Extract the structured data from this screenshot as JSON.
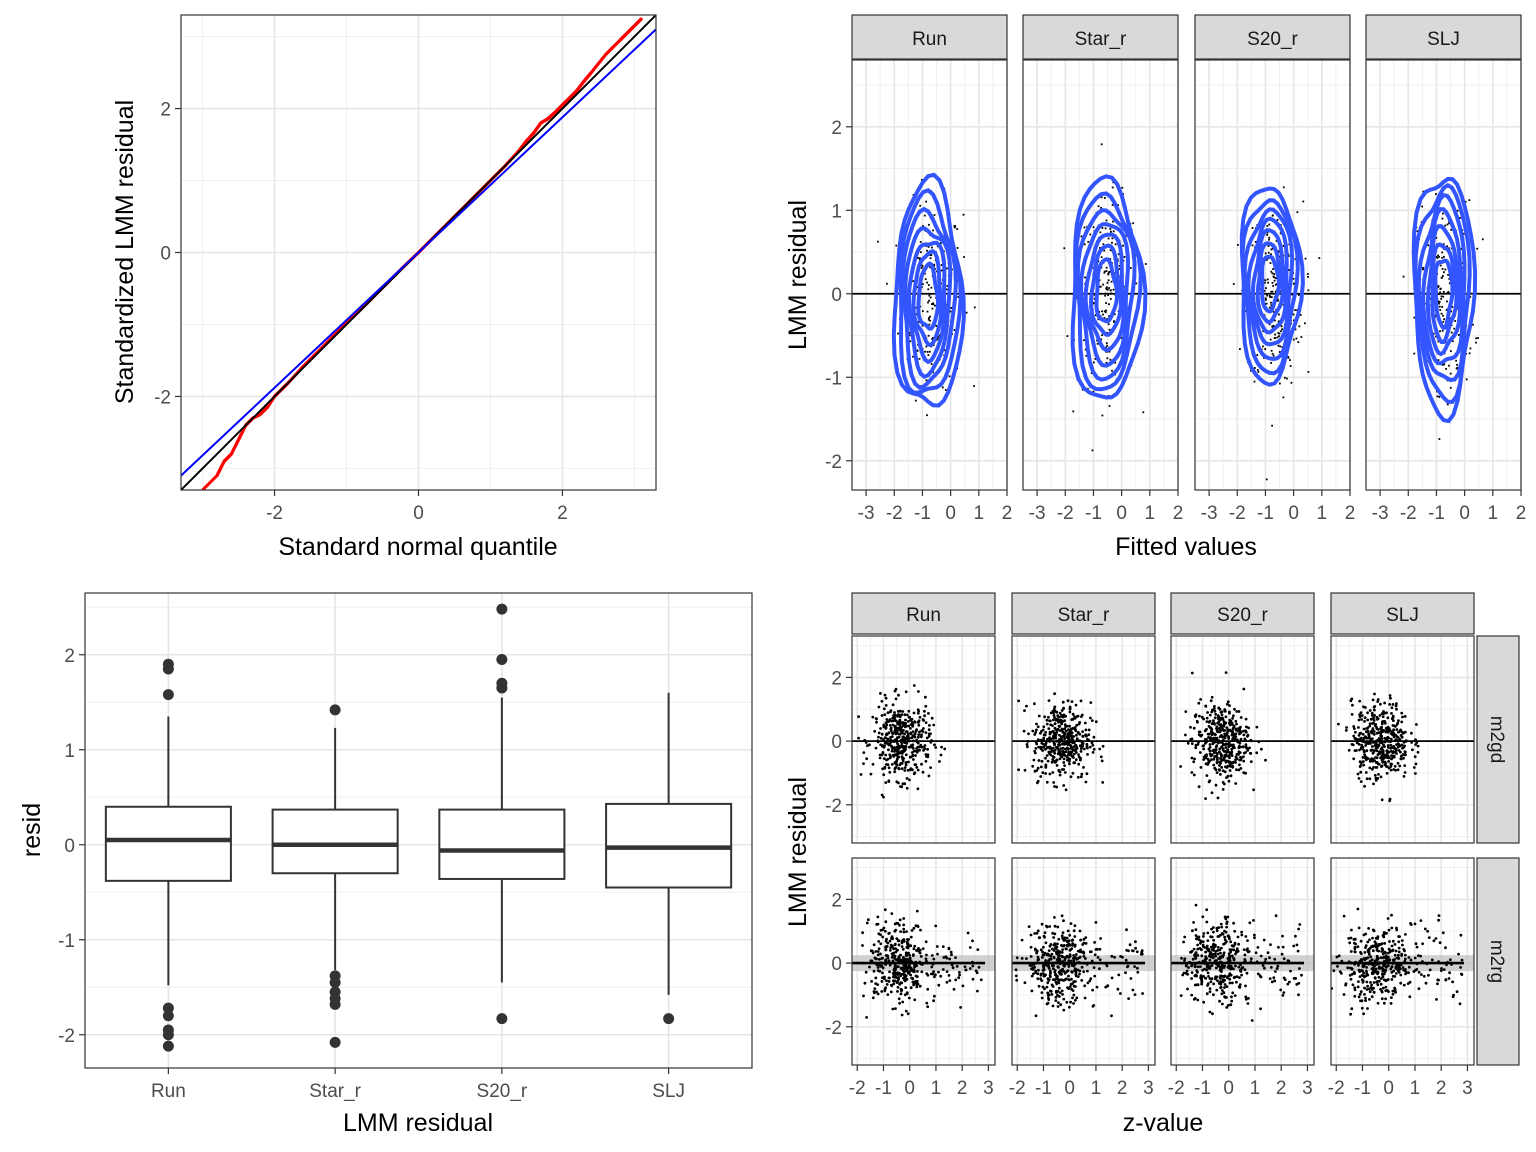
{
  "chart_data": [
    {
      "type": "scatter",
      "title": "",
      "xlabel": "Standard normal quantile",
      "ylabel": "Standardized LMM residual",
      "xlim": [
        -3.3,
        3.3
      ],
      "ylim": [
        -3.3,
        3.3
      ],
      "xticks": [
        -2,
        0,
        2
      ],
      "yticks": [
        -2,
        0,
        2
      ],
      "xtick_labels": [
        "-2",
        "0",
        "2"
      ],
      "ytick_labels": [
        "-2",
        "0",
        "2"
      ],
      "grid": true,
      "colors": {
        "points": "#ff0000",
        "identity_line": "#000000",
        "qq_line": "#0000ff"
      },
      "series": [
        {
          "kind": "points",
          "x": [
            -3.1,
            -2.8,
            -2.7,
            -2.6,
            -2.5,
            -2.4,
            -2.3,
            -2.2,
            -2.1,
            -2.0,
            -1.9,
            -1.8,
            -1.6,
            -1.4,
            -1.2,
            -1.0,
            -0.8,
            -0.6,
            -0.4,
            -0.2,
            0.0,
            0.2,
            0.4,
            0.6,
            0.8,
            1.0,
            1.2,
            1.4,
            1.5,
            1.6,
            1.7,
            1.8,
            1.9,
            2.0,
            2.1,
            2.2,
            2.3,
            2.4,
            2.6,
            2.8,
            2.9,
            3.0,
            3.1
          ],
          "y": [
            -3.4,
            -3.1,
            -2.9,
            -2.8,
            -2.6,
            -2.4,
            -2.3,
            -2.25,
            -2.15,
            -2.0,
            -1.9,
            -1.8,
            -1.58,
            -1.38,
            -1.18,
            -0.98,
            -0.79,
            -0.59,
            -0.39,
            -0.19,
            0.0,
            0.2,
            0.4,
            0.6,
            0.8,
            1.0,
            1.2,
            1.42,
            1.55,
            1.66,
            1.8,
            1.86,
            1.95,
            2.05,
            2.15,
            2.25,
            2.38,
            2.5,
            2.75,
            2.95,
            3.05,
            3.15,
            3.25
          ]
        },
        {
          "kind": "line",
          "name": "",
          "x": [
            -3.3,
            3.3
          ],
          "y": [
            -3.3,
            3.3
          ]
        },
        {
          "kind": "line",
          "name": "",
          "x": [
            -3.3,
            3.3
          ],
          "y": [
            -3.1,
            3.1
          ]
        }
      ]
    },
    {
      "type": "scatter",
      "title": "",
      "xlabel": "Fitted values",
      "ylabel": "LMM residual",
      "xlim": [
        -3.5,
        2.0
      ],
      "ylim": [
        -2.35,
        2.8
      ],
      "xticks": [
        -3,
        -2,
        -1,
        0,
        1,
        2
      ],
      "yticks": [
        -2,
        -1,
        0,
        1,
        2
      ],
      "xtick_labels": [
        "-3",
        "-2",
        "-1",
        "0",
        "1",
        "2"
      ],
      "ytick_labels": [
        "-2",
        "-1",
        "0",
        "1",
        "2"
      ],
      "grid": true,
      "colors": {
        "contour": "#3355ff",
        "points": "#000000",
        "hline": "#000000"
      },
      "facets": [
        {
          "label": "Run",
          "center_x": -0.7,
          "spread_x": 0.55,
          "contour_x": [
            -2.0,
            0.4
          ],
          "contour_y": [
            -1.4,
            1.3
          ]
        },
        {
          "label": "Star_r",
          "center_x": -0.5,
          "spread_x": 0.55,
          "contour_x": [
            -1.8,
            0.7
          ],
          "contour_y": [
            -1.3,
            1.35
          ]
        },
        {
          "label": "S20_r",
          "center_x": -0.7,
          "spread_x": 0.5,
          "contour_x": [
            -1.9,
            0.2
          ],
          "contour_y": [
            -1.05,
            1.3
          ]
        },
        {
          "label": "SLJ",
          "center_x": -0.7,
          "spread_x": 0.5,
          "contour_x": [
            -1.8,
            0.3
          ],
          "contour_y": [
            -1.4,
            1.45
          ]
        }
      ]
    },
    {
      "type": "box",
      "title": "",
      "xlabel": "LMM residual",
      "ylabel": "resid",
      "ylim": [
        -2.35,
        2.65
      ],
      "yticks": [
        -2,
        -1,
        0,
        1,
        2
      ],
      "ytick_labels": [
        "-2",
        "-1",
        "0",
        "1",
        "2"
      ],
      "categories": [
        "Run",
        "Star_r",
        "S20_r",
        "SLJ"
      ],
      "grid": true,
      "boxes": [
        {
          "category": "Run",
          "q1": -0.38,
          "median": 0.05,
          "q3": 0.4,
          "whisker_low": -1.48,
          "whisker_high": 1.35,
          "outliers": [
            1.9,
            1.85,
            1.58,
            -1.72,
            -1.8,
            -1.95,
            -2.0,
            -2.12
          ]
        },
        {
          "category": "Star_r",
          "q1": -0.3,
          "median": 0.0,
          "q3": 0.37,
          "whisker_low": -1.32,
          "whisker_high": 1.23,
          "outliers": [
            1.42,
            -1.38,
            -1.45,
            -1.55,
            -1.62,
            -1.68,
            -2.08
          ]
        },
        {
          "category": "S20_r",
          "q1": -0.36,
          "median": -0.06,
          "q3": 0.37,
          "whisker_low": -1.45,
          "whisker_high": 1.55,
          "outliers": [
            2.48,
            1.95,
            1.7,
            1.65,
            -1.83
          ]
        },
        {
          "category": "SLJ",
          "q1": -0.45,
          "median": -0.03,
          "q3": 0.43,
          "whisker_low": -1.58,
          "whisker_high": 1.6,
          "outliers": [
            -1.83
          ]
        }
      ]
    },
    {
      "type": "scatter",
      "title": "",
      "xlabel": "z-value",
      "ylabel": "LMM residual",
      "xlim": [
        -2.2,
        3.25
      ],
      "ylim": [
        -3.2,
        3.3
      ],
      "xticks": [
        -2,
        -1,
        0,
        1,
        2,
        3
      ],
      "yticks": [
        -2,
        0,
        2
      ],
      "xtick_labels": [
        "-2",
        "-1",
        "0",
        "1",
        "2",
        "3"
      ],
      "ytick_labels": [
        "-2",
        "0",
        "2"
      ],
      "grid": true,
      "col_facets": [
        "Run",
        "Star_r",
        "S20_r",
        "SLJ"
      ],
      "row_facets": [
        "m2gd",
        "m2rg"
      ],
      "rows": [
        {
          "label": "m2gd",
          "points_x_range": [
            -2.0,
            1.4
          ],
          "points_y_range": [
            -2.1,
            1.9
          ],
          "smooth_band": false
        },
        {
          "label": "m2rg",
          "points_x_range": [
            -2.0,
            3.0
          ],
          "points_y_range": [
            -2.1,
            2.5
          ],
          "smooth_band": true
        }
      ]
    }
  ]
}
